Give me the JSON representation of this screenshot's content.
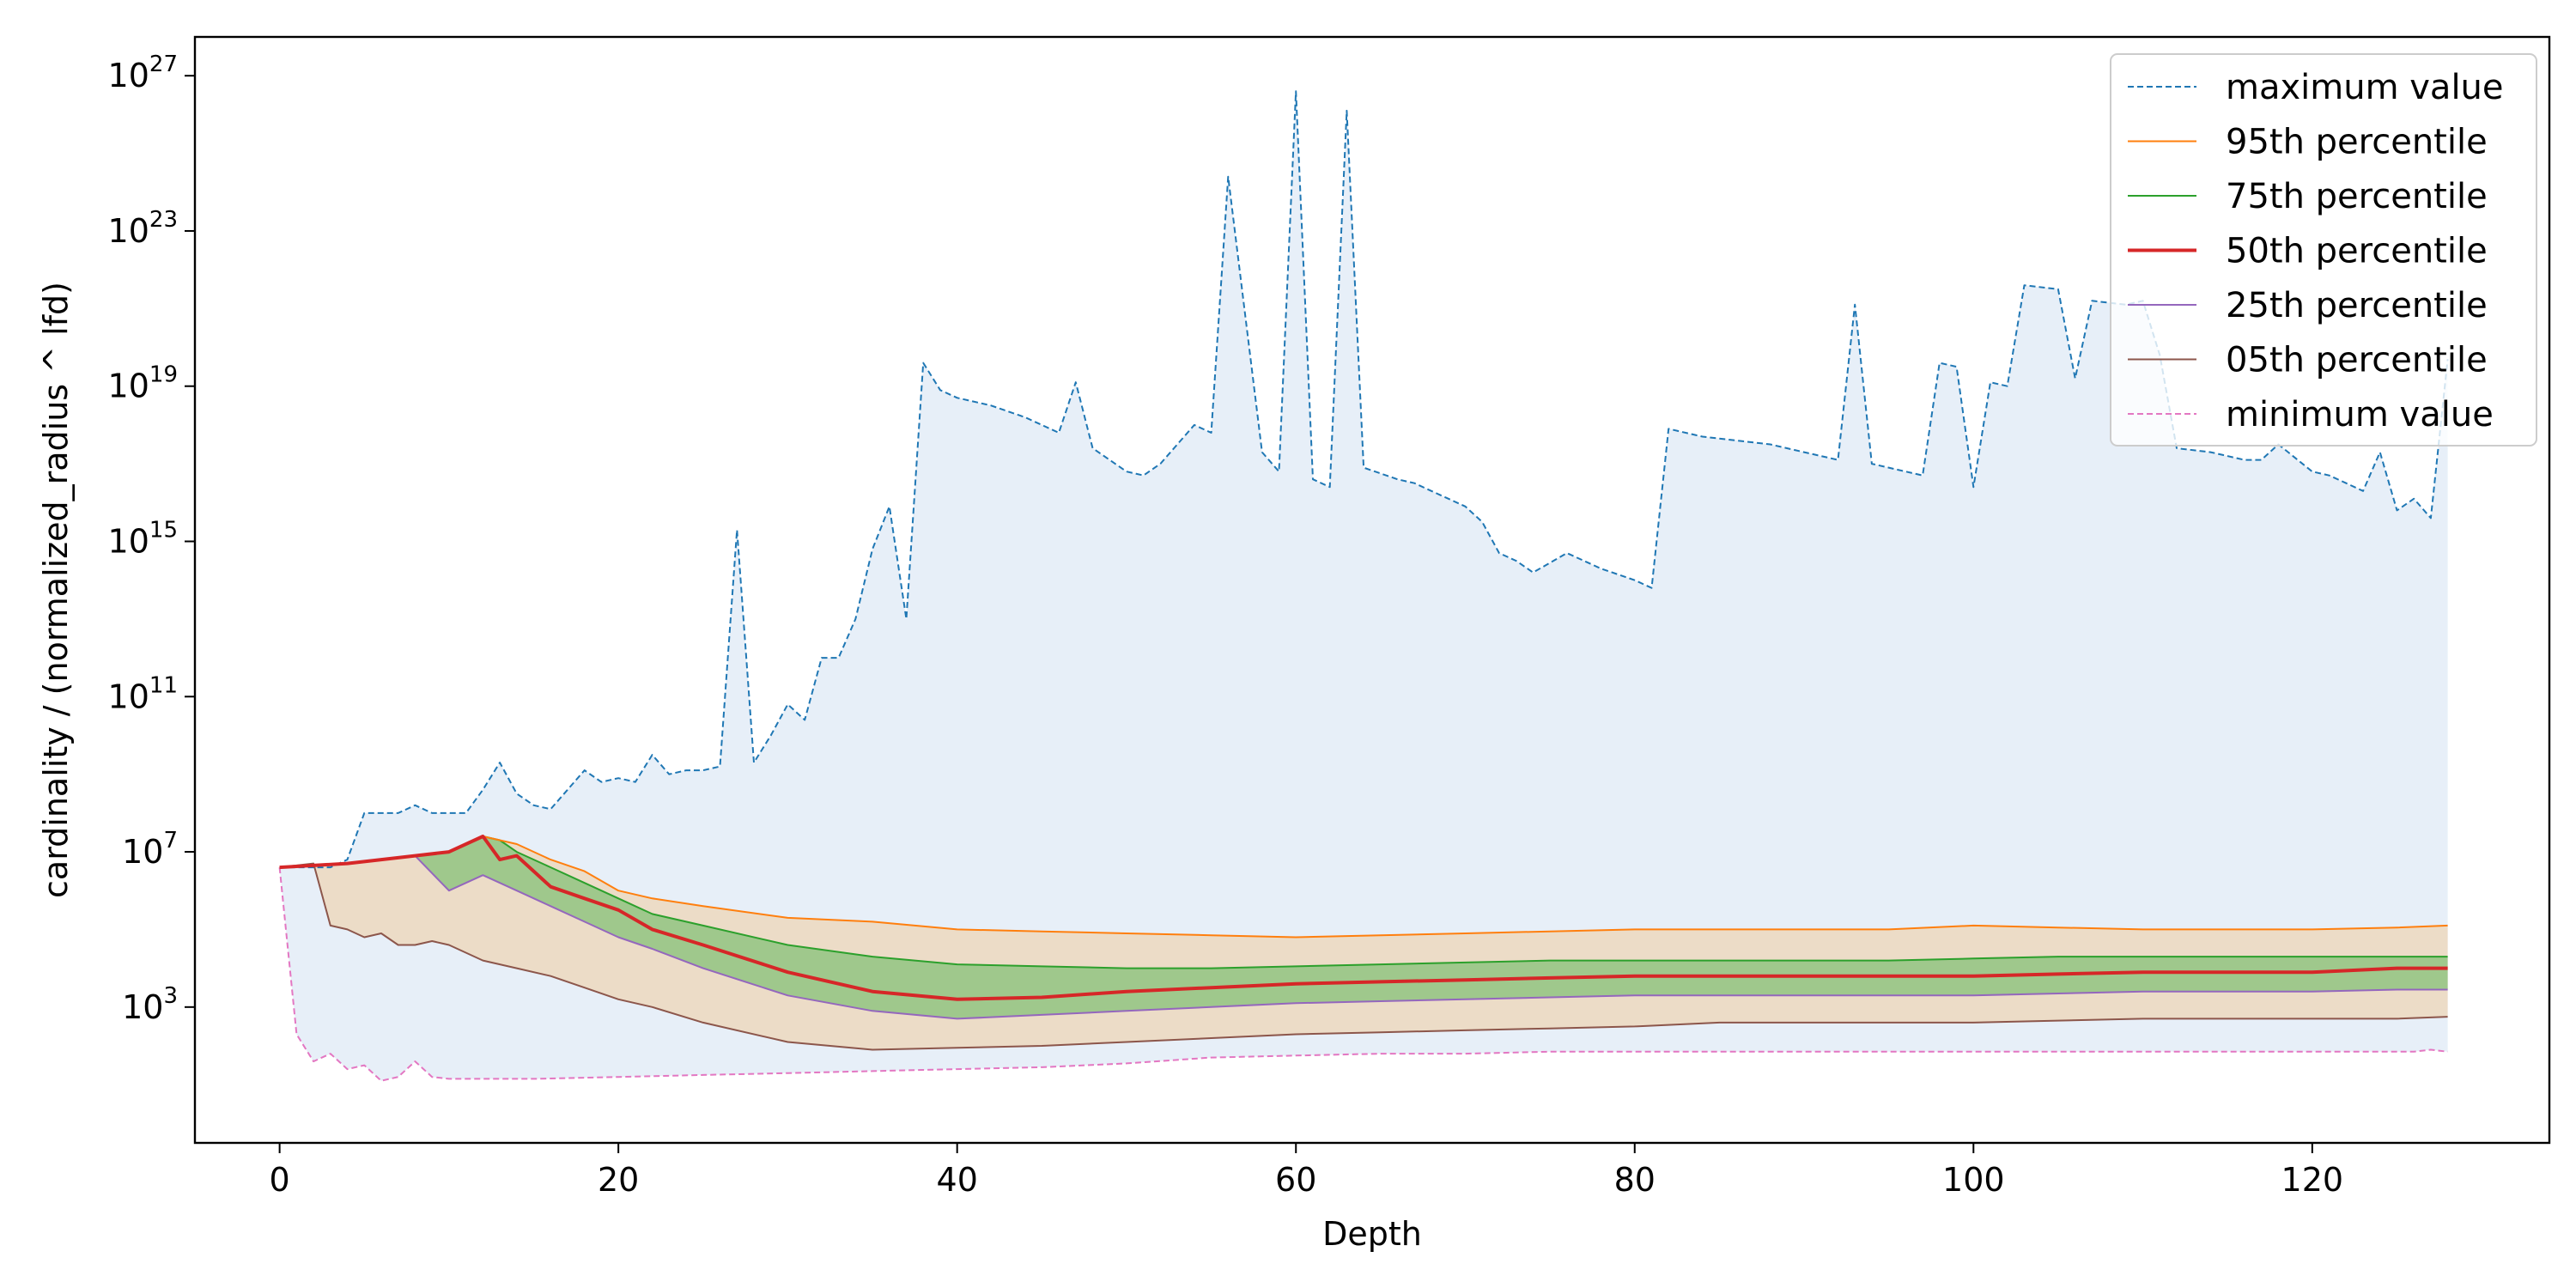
{
  "chart_data": {
    "type": "line",
    "title": "",
    "xlabel": "Depth",
    "ylabel": "cardinality / (normalized_radius ^ lfd)",
    "y_scale": "log",
    "xlim": [
      -5,
      134
    ],
    "ylim_log10": [
      -0.5,
      28
    ],
    "x_ticks": [
      0,
      20,
      40,
      60,
      80,
      100,
      120
    ],
    "y_tick_labels": [
      {
        "base": "10",
        "exp": "3",
        "log10": 3
      },
      {
        "base": "10",
        "exp": "7",
        "log10": 7
      },
      {
        "base": "10",
        "exp": "11",
        "log10": 11
      },
      {
        "base": "10",
        "exp": "15",
        "log10": 15
      },
      {
        "base": "10",
        "exp": "19",
        "log10": 19
      },
      {
        "base": "10",
        "exp": "23",
        "log10": 23
      },
      {
        "base": "10",
        "exp": "27",
        "log10": 27
      }
    ],
    "legend_position": "top-right",
    "x": [
      0,
      2,
      4,
      6,
      8,
      10,
      12,
      13,
      14,
      16,
      18,
      20,
      22,
      25,
      30,
      35,
      40,
      45,
      50,
      55,
      60,
      65,
      70,
      75,
      80,
      85,
      90,
      95,
      100,
      105,
      110,
      115,
      120,
      125,
      128
    ],
    "series": [
      {
        "name": "maximum value",
        "color": "#1f77b4",
        "style": "dashed",
        "x": [
          0,
          2,
          3,
          4,
          5,
          6,
          7,
          8,
          9,
          10,
          11,
          12,
          13,
          14,
          15,
          16,
          17,
          18,
          19,
          20,
          21,
          22,
          23,
          24,
          25,
          26,
          27,
          28,
          29,
          30,
          31,
          32,
          33,
          34,
          35,
          36,
          37,
          38,
          39,
          40,
          42,
          44,
          46,
          47,
          48,
          50,
          51,
          52,
          54,
          55,
          56,
          58,
          59,
          60,
          61,
          62,
          63,
          64,
          66,
          67,
          68,
          70,
          71,
          72,
          73,
          74,
          76,
          78,
          80,
          81,
          82,
          84,
          86,
          88,
          90,
          91,
          92,
          93,
          94,
          96,
          97,
          98,
          99,
          100,
          101,
          102,
          103,
          105,
          106,
          107,
          109,
          110,
          111,
          112,
          114,
          116,
          117,
          118,
          120,
          121,
          122,
          123,
          124,
          125,
          126,
          127,
          128
        ],
        "log10": [
          6.6,
          6.6,
          6.6,
          6.8,
          8.0,
          8.0,
          8.0,
          8.2,
          8.0,
          8.0,
          8.0,
          8.6,
          9.3,
          8.5,
          8.2,
          8.1,
          8.6,
          9.1,
          8.8,
          8.9,
          8.8,
          9.5,
          9.0,
          9.1,
          9.1,
          9.2,
          15.3,
          9.3,
          10.0,
          10.8,
          10.4,
          12.0,
          12.0,
          13.0,
          14.8,
          15.9,
          13.0,
          19.6,
          18.9,
          18.7,
          18.5,
          18.2,
          17.8,
          19.1,
          17.4,
          16.8,
          16.7,
          17.0,
          18.0,
          17.8,
          24.4,
          17.3,
          16.8,
          26.6,
          16.6,
          16.4,
          26.1,
          16.9,
          16.6,
          16.5,
          16.3,
          15.9,
          15.5,
          14.7,
          14.5,
          14.2,
          14.7,
          14.3,
          14.0,
          13.8,
          17.9,
          17.7,
          17.6,
          17.5,
          17.3,
          17.2,
          17.1,
          21.1,
          17.0,
          16.8,
          16.7,
          19.6,
          19.5,
          16.4,
          19.1,
          19.0,
          21.6,
          21.5,
          19.2,
          21.2,
          21.1,
          21.2,
          19.8,
          17.4,
          17.3,
          17.1,
          17.1,
          17.5,
          16.8,
          16.7,
          16.5,
          16.3,
          17.3,
          15.8,
          16.1,
          15.6,
          19.7
        ]
      },
      {
        "name": "95th percentile",
        "color": "#ff7f0e",
        "style": "solid",
        "x": [
          0,
          2,
          4,
          6,
          8,
          10,
          12,
          13,
          14,
          16,
          18,
          20,
          22,
          25,
          30,
          35,
          40,
          45,
          50,
          55,
          60,
          65,
          70,
          75,
          80,
          85,
          90,
          95,
          100,
          105,
          110,
          115,
          120,
          125,
          128
        ],
        "log10": [
          6.6,
          6.65,
          6.7,
          6.8,
          6.9,
          7.0,
          7.4,
          7.3,
          7.2,
          6.8,
          6.5,
          6.0,
          5.8,
          5.6,
          5.3,
          5.2,
          5.0,
          4.95,
          4.9,
          4.85,
          4.8,
          4.85,
          4.9,
          4.95,
          5.0,
          5.0,
          5.0,
          5.0,
          5.1,
          5.05,
          5.0,
          5.0,
          5.0,
          5.05,
          5.1
        ]
      },
      {
        "name": "75th percentile",
        "color": "#2ca02c",
        "style": "solid",
        "x": [
          0,
          2,
          4,
          6,
          8,
          10,
          12,
          13,
          14,
          16,
          18,
          20,
          22,
          25,
          30,
          35,
          40,
          45,
          50,
          55,
          60,
          65,
          70,
          75,
          80,
          85,
          90,
          95,
          100,
          105,
          110,
          115,
          120,
          125,
          128
        ],
        "log10": [
          6.6,
          6.65,
          6.7,
          6.8,
          6.9,
          7.0,
          7.4,
          7.3,
          7.0,
          6.6,
          6.2,
          5.8,
          5.4,
          5.1,
          4.6,
          4.3,
          4.1,
          4.05,
          4.0,
          4.0,
          4.05,
          4.1,
          4.15,
          4.2,
          4.2,
          4.2,
          4.2,
          4.2,
          4.25,
          4.3,
          4.3,
          4.3,
          4.3,
          4.3,
          4.3
        ]
      },
      {
        "name": "50th percentile",
        "color": "#d62728",
        "style": "solid",
        "x": [
          0,
          2,
          4,
          6,
          8,
          10,
          12,
          13,
          14,
          16,
          18,
          20,
          22,
          25,
          30,
          35,
          40,
          45,
          50,
          55,
          60,
          65,
          70,
          75,
          80,
          85,
          90,
          95,
          100,
          105,
          110,
          115,
          120,
          125,
          128
        ],
        "log10": [
          6.6,
          6.65,
          6.7,
          6.8,
          6.9,
          7.0,
          7.4,
          6.8,
          6.9,
          6.1,
          5.8,
          5.5,
          5.0,
          4.6,
          3.9,
          3.4,
          3.2,
          3.25,
          3.4,
          3.5,
          3.6,
          3.65,
          3.7,
          3.75,
          3.8,
          3.8,
          3.8,
          3.8,
          3.8,
          3.85,
          3.9,
          3.9,
          3.9,
          4.0,
          4.0
        ]
      },
      {
        "name": "25th percentile",
        "color": "#9467bd",
        "style": "solid",
        "x": [
          0,
          2,
          4,
          6,
          8,
          10,
          12,
          13,
          14,
          16,
          18,
          20,
          22,
          25,
          30,
          35,
          40,
          45,
          50,
          55,
          60,
          65,
          70,
          75,
          80,
          85,
          90,
          95,
          100,
          105,
          110,
          115,
          120,
          125,
          128
        ],
        "log10": [
          6.6,
          6.65,
          6.7,
          6.8,
          6.9,
          6.0,
          6.4,
          6.2,
          6.0,
          5.6,
          5.2,
          4.8,
          4.5,
          4.0,
          3.3,
          2.9,
          2.7,
          2.8,
          2.9,
          3.0,
          3.1,
          3.15,
          3.2,
          3.25,
          3.3,
          3.3,
          3.3,
          3.3,
          3.3,
          3.35,
          3.4,
          3.4,
          3.4,
          3.45,
          3.45
        ]
      },
      {
        "name": "05th percentile",
        "color": "#8c564b",
        "style": "solid",
        "x": [
          0,
          2,
          3,
          4,
          5,
          6,
          7,
          8,
          9,
          10,
          12,
          14,
          16,
          18,
          20,
          22,
          25,
          30,
          35,
          40,
          45,
          50,
          55,
          60,
          65,
          70,
          75,
          80,
          85,
          90,
          95,
          100,
          105,
          110,
          115,
          120,
          125,
          128
        ],
        "log10": [
          6.6,
          6.7,
          5.1,
          5.0,
          4.8,
          4.9,
          4.6,
          4.6,
          4.7,
          4.6,
          4.2,
          4.0,
          3.8,
          3.5,
          3.2,
          3.0,
          2.6,
          2.1,
          1.9,
          1.95,
          2.0,
          2.1,
          2.2,
          2.3,
          2.35,
          2.4,
          2.45,
          2.5,
          2.6,
          2.6,
          2.6,
          2.6,
          2.65,
          2.7,
          2.7,
          2.7,
          2.7,
          2.75
        ]
      },
      {
        "name": "minimum value",
        "color": "#e377c2",
        "style": "dashed",
        "x": [
          0,
          1,
          2,
          3,
          4,
          5,
          6,
          7,
          8,
          9,
          10,
          15,
          20,
          25,
          30,
          35,
          40,
          45,
          50,
          55,
          60,
          65,
          70,
          75,
          80,
          85,
          90,
          95,
          100,
          105,
          110,
          115,
          120,
          125,
          126,
          127,
          128
        ],
        "log10": [
          6.6,
          2.3,
          1.6,
          1.8,
          1.4,
          1.5,
          1.1,
          1.2,
          1.6,
          1.2,
          1.15,
          1.15,
          1.2,
          1.25,
          1.3,
          1.35,
          1.4,
          1.45,
          1.55,
          1.7,
          1.75,
          1.8,
          1.8,
          1.85,
          1.85,
          1.85,
          1.85,
          1.85,
          1.85,
          1.85,
          1.85,
          1.85,
          1.85,
          1.85,
          1.85,
          1.9,
          1.85
        ]
      }
    ]
  }
}
